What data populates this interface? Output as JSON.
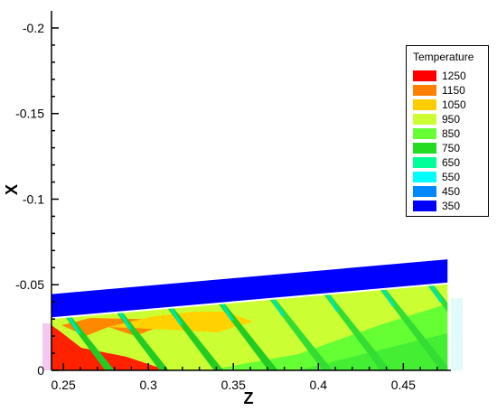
{
  "chart_data": {
    "type": "heatmap",
    "title": "",
    "xlabel": "Z",
    "ylabel": "X",
    "xlim": [
      0.243,
      0.478
    ],
    "ylim": [
      0,
      -0.21
    ],
    "x_ticks": [
      {
        "value": 0.25,
        "label": "0.25"
      },
      {
        "value": 0.3,
        "label": "0.3"
      },
      {
        "value": 0.35,
        "label": "0.35"
      },
      {
        "value": 0.4,
        "label": "0.4"
      },
      {
        "value": 0.45,
        "label": "0.45"
      }
    ],
    "y_ticks": [
      {
        "value": 0,
        "label": "0"
      },
      {
        "value": -0.05,
        "label": "-0.05"
      },
      {
        "value": -0.1,
        "label": "-0.1"
      },
      {
        "value": -0.15,
        "label": "-0.15"
      },
      {
        "value": -0.2,
        "label": "-0.2"
      }
    ],
    "legend": {
      "title": "Temperature",
      "position": "top-right",
      "levels": [
        {
          "label": "1250",
          "color": "#ff0000"
        },
        {
          "label": "1150",
          "color": "#ff7f00"
        },
        {
          "label": "1050",
          "color": "#ffcc00"
        },
        {
          "label": "950",
          "color": "#ccff33"
        },
        {
          "label": "850",
          "color": "#66ff33"
        },
        {
          "label": "750",
          "color": "#22dd22"
        },
        {
          "label": "650",
          "color": "#00ff99"
        },
        {
          "label": "550",
          "color": "#00ffff"
        },
        {
          "label": "450",
          "color": "#0088ff"
        },
        {
          "label": "350",
          "color": "#0000ff"
        }
      ]
    }
  }
}
